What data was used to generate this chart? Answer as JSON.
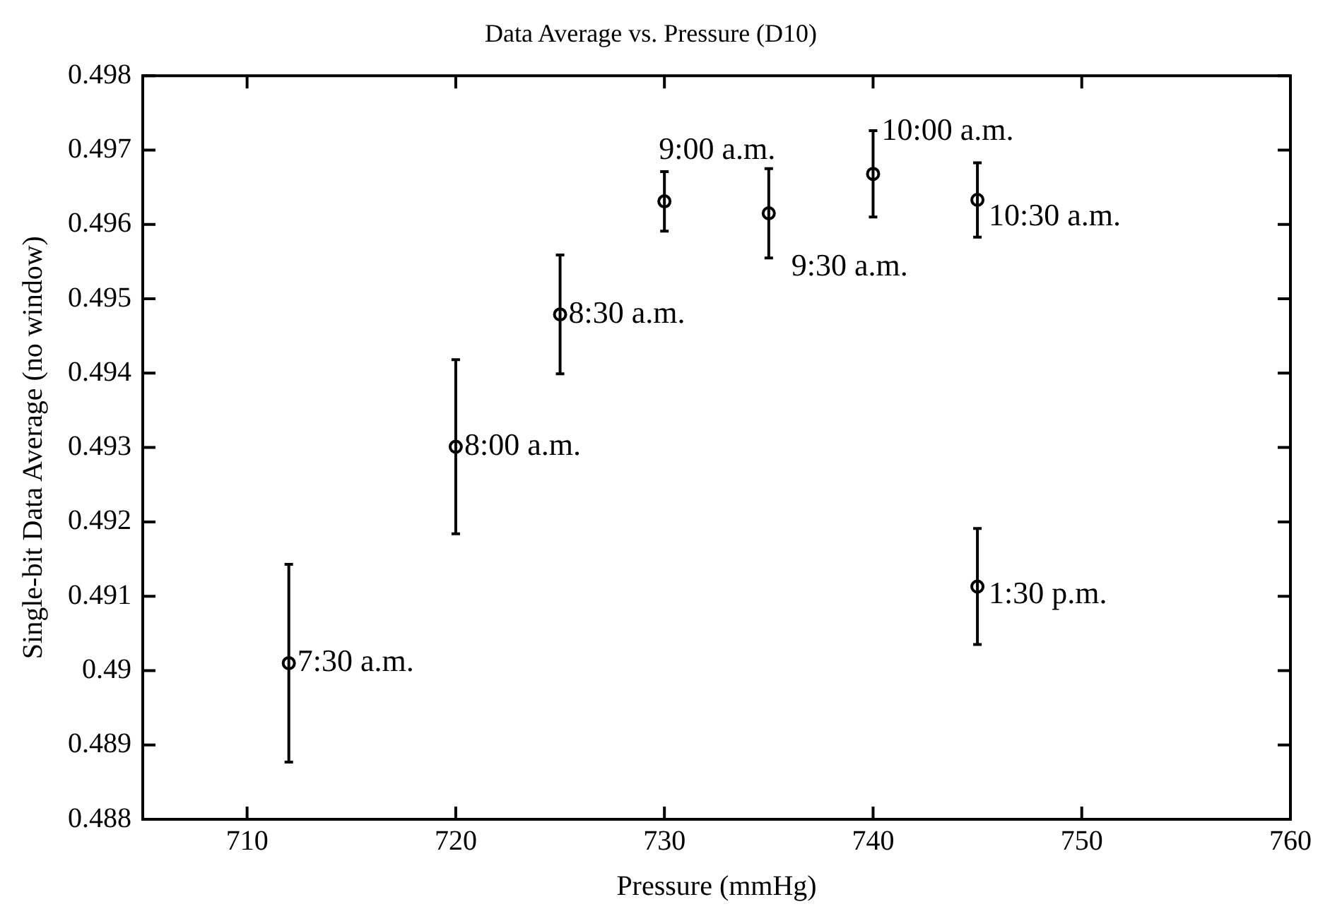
{
  "chart_data": {
    "type": "scatter",
    "title": "Data Average vs. Pressure (D10)",
    "xlabel": "Pressure (mmHg)",
    "ylabel": "Single-bit Data Average (no window)",
    "x": [
      712,
      720,
      725,
      730,
      735,
      740,
      745,
      745
    ],
    "values": [
      0.4901,
      0.49301,
      0.49479,
      0.49631,
      0.49615,
      0.49668,
      0.49633,
      0.49113
    ],
    "errors": [
      0.00133,
      0.00117,
      0.0008,
      0.0004,
      0.0006,
      0.00058,
      0.0005,
      0.00078
    ],
    "color": "#000000",
    "marker": "circle",
    "grid": false,
    "xlim": [
      705,
      760
    ],
    "xticks": [
      710,
      720,
      730,
      740,
      750,
      760
    ],
    "ylim": [
      0.488,
      0.498
    ],
    "yticks": [
      0.488,
      0.489,
      0.49,
      0.491,
      0.492,
      0.493,
      0.494,
      0.495,
      0.496,
      0.497,
      0.498
    ],
    "annotations": [
      {
        "text": "7:30 a.m.",
        "x": 712,
        "y": 0.4901
      },
      {
        "text": "8:00 a.m.",
        "x": 720,
        "y": 0.49301
      },
      {
        "text": "8:30 a.m.",
        "x": 725,
        "y": 0.49479
      },
      {
        "text": "9:00 a.m.",
        "x": 730,
        "y": 0.49631
      },
      {
        "text": "9:30 a.m.",
        "x": 735,
        "y": 0.49615
      },
      {
        "text": "10:00 a.m.",
        "x": 740,
        "y": 0.49668
      },
      {
        "text": "10:30 a.m.",
        "x": 745,
        "y": 0.49633
      },
      {
        "text": "1:30 p.m.",
        "x": 745,
        "y": 0.49113
      }
    ]
  }
}
